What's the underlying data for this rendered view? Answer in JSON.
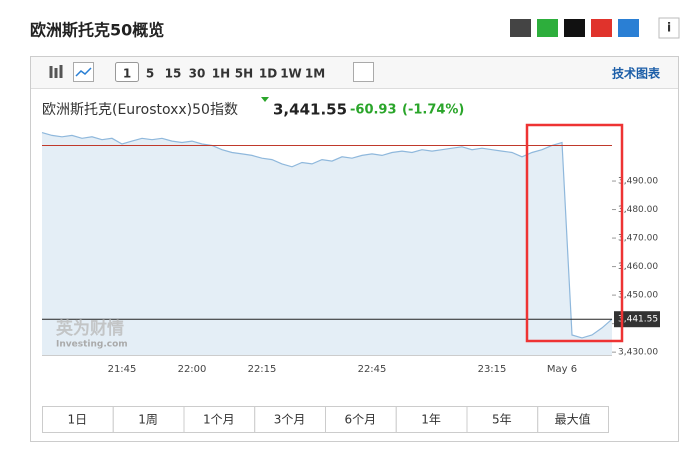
{
  "header": {
    "title": "欧洲斯托克50概览"
  },
  "toolbar": {
    "intervals": [
      "1",
      "5",
      "15",
      "30",
      "1H",
      "5H",
      "1D",
      "1W",
      "1M"
    ],
    "active": 0,
    "link": "技术图表"
  },
  "quote": {
    "name": "欧洲斯托克(Eurostoxx)50指数",
    "change": "-60.93",
    "change_pct": "(-1.74%)"
  },
  "chart_data": {
    "type": "line",
    "categories": [
      null,
      null,
      null,
      null,
      null,
      null,
      null,
      null,
      "21:45",
      null,
      null,
      null,
      null,
      null,
      null,
      "22:00",
      null,
      null,
      null,
      null,
      null,
      null,
      "22:15",
      null,
      null,
      null,
      null,
      null,
      null,
      null,
      null,
      null,
      null,
      "22:45",
      null,
      null,
      null,
      null,
      null,
      null,
      null,
      null,
      null,
      null,
      null,
      "23:15",
      null,
      null,
      null,
      null,
      null,
      null,
      "May 6",
      null,
      null,
      null,
      null,
      null
    ],
    "series": [
      {
        "color": "#8fb8dc",
        "values": [
          3507,
          3506,
          3505.5,
          3506,
          3505,
          3505.5,
          3504.5,
          3505,
          3503,
          3504,
          3505,
          3504.5,
          3505,
          3504,
          3503.5,
          3504,
          3503,
          3502.5,
          3501,
          3500,
          3499.5,
          3499,
          3498,
          3497.5,
          3496,
          3495,
          3496.5,
          3496,
          3497.5,
          3497,
          3498.5,
          3498,
          3499,
          3499.5,
          3499,
          3500,
          3500.5,
          3500,
          3501,
          3500.5,
          3501,
          3501.5,
          3502,
          3501,
          3501.5,
          3501,
          3500.5,
          3500,
          3498.5,
          3500,
          3501,
          3502.5,
          3503.5,
          3436,
          3435,
          3436,
          3438.5,
          3441.55
        ]
      }
    ],
    "ylim": [
      3429,
      3510
    ],
    "yticks": [
      {
        "value": 3430,
        "label": "3,430.00"
      },
      {
        "value": 3440,
        "label": "3,440.00"
      },
      {
        "value": 3450,
        "label": "3,450.00"
      },
      {
        "value": 3460,
        "label": "3,460.00"
      },
      {
        "value": 3470,
        "label": "3,470.00"
      },
      {
        "value": 3480,
        "label": "3,480.00"
      },
      {
        "value": 3490,
        "label": "3,490.00"
      }
    ],
    "previous_close": {
      "value": 3502.48,
      "color": "#c0392b"
    },
    "current": {
      "value": 3441.55,
      "label": "3,441.55"
    },
    "watermark": [
      "英为财情",
      "Investing.com"
    ]
  },
  "ranges": [
    "1日",
    "1周",
    "1个月",
    "3个月",
    "6个月",
    "1年",
    "5年",
    "最大值"
  ]
}
